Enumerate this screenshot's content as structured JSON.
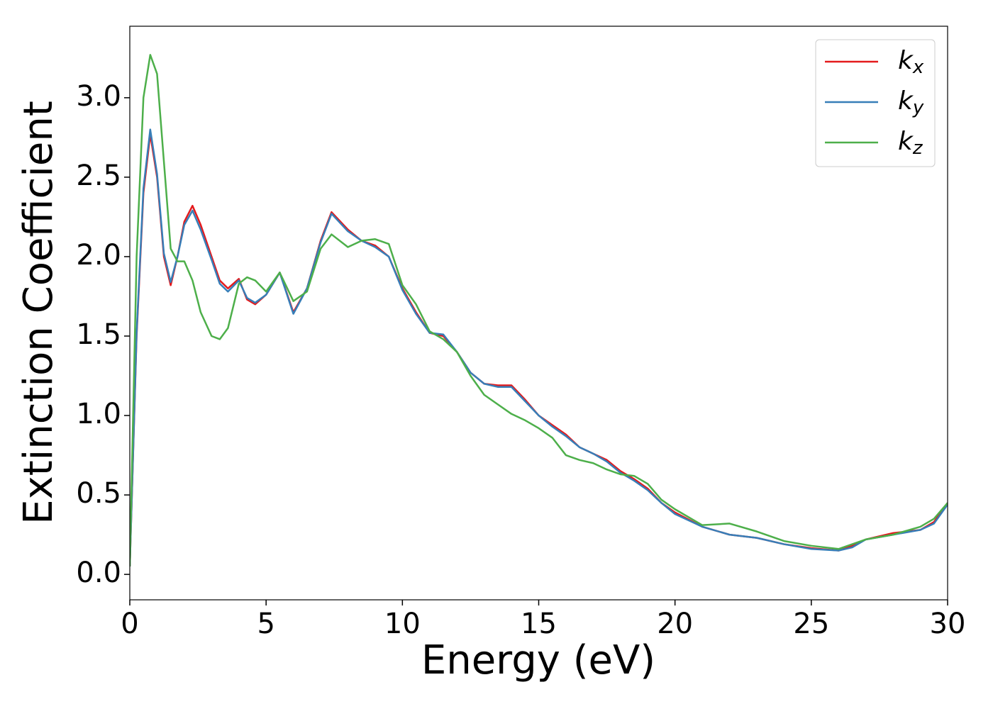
{
  "chart_data": {
    "type": "line",
    "xlabel": "Energy (eV)",
    "ylabel": "Extinction Coefficient",
    "xlim": [
      0,
      30
    ],
    "ylim": [
      -0.16,
      3.45
    ],
    "xticks": [
      0,
      5,
      10,
      15,
      20,
      25,
      30
    ],
    "yticks": [
      {
        "value": 0,
        "label": "0.0"
      },
      0.5,
      {
        "value": 1,
        "label": "1.0"
      },
      1.5,
      {
        "value": 2,
        "label": "2.0"
      },
      2.5,
      {
        "value": 3,
        "label": "3.0"
      }
    ],
    "legend": "upper right",
    "x": [
      0,
      0.25,
      0.5,
      0.75,
      1.0,
      1.25,
      1.5,
      1.75,
      2,
      2.3,
      2.6,
      3,
      3.3,
      3.6,
      4,
      4.3,
      4.6,
      5,
      5.5,
      6,
      6.5,
      7,
      7.4,
      8,
      8.5,
      9,
      9.5,
      10,
      10.5,
      11,
      11.5,
      12,
      12.5,
      13,
      13.5,
      14,
      14.5,
      15,
      15.5,
      16,
      16.5,
      17,
      17.5,
      18,
      18.5,
      19,
      19.5,
      20,
      21,
      22,
      23,
      24,
      25,
      26,
      26.5,
      27,
      28,
      29,
      29.5,
      30
    ],
    "series": [
      {
        "name": "kx",
        "color": "#e41a1c",
        "values": [
          0.05,
          1.5,
          2.4,
          2.77,
          2.5,
          2.0,
          1.82,
          2.0,
          2.22,
          2.32,
          2.2,
          2.0,
          1.85,
          1.8,
          1.86,
          1.73,
          1.7,
          1.76,
          1.9,
          1.65,
          1.8,
          2.1,
          2.28,
          2.17,
          2.1,
          2.07,
          2.0,
          1.8,
          1.65,
          1.52,
          1.5,
          1.4,
          1.27,
          1.2,
          1.19,
          1.19,
          1.1,
          1.0,
          0.94,
          0.88,
          0.8,
          0.76,
          0.72,
          0.65,
          0.6,
          0.54,
          0.45,
          0.39,
          0.3,
          0.25,
          0.23,
          0.19,
          0.165,
          0.15,
          0.18,
          0.22,
          0.26,
          0.28,
          0.33,
          0.45
        ]
      },
      {
        "name": "ky",
        "color": "#377eb8",
        "values": [
          0.05,
          1.52,
          2.43,
          2.8,
          2.52,
          2.02,
          1.84,
          2.0,
          2.2,
          2.29,
          2.17,
          1.98,
          1.83,
          1.78,
          1.85,
          1.74,
          1.71,
          1.76,
          1.9,
          1.64,
          1.8,
          2.09,
          2.27,
          2.16,
          2.1,
          2.06,
          2.0,
          1.79,
          1.64,
          1.52,
          1.51,
          1.4,
          1.27,
          1.2,
          1.18,
          1.18,
          1.09,
          1.0,
          0.93,
          0.87,
          0.8,
          0.76,
          0.71,
          0.64,
          0.59,
          0.53,
          0.45,
          0.38,
          0.3,
          0.25,
          0.23,
          0.19,
          0.16,
          0.15,
          0.17,
          0.22,
          0.25,
          0.28,
          0.32,
          0.44
        ]
      },
      {
        "name": "kz",
        "color": "#4daf4a",
        "values": [
          0.05,
          2.0,
          3.0,
          3.27,
          3.15,
          2.6,
          2.05,
          1.97,
          1.97,
          1.85,
          1.65,
          1.5,
          1.48,
          1.55,
          1.83,
          1.87,
          1.85,
          1.78,
          1.9,
          1.72,
          1.78,
          2.05,
          2.14,
          2.06,
          2.1,
          2.11,
          2.08,
          1.82,
          1.7,
          1.53,
          1.48,
          1.4,
          1.25,
          1.13,
          1.07,
          1.01,
          0.97,
          0.92,
          0.86,
          0.75,
          0.72,
          0.7,
          0.66,
          0.63,
          0.62,
          0.57,
          0.47,
          0.41,
          0.31,
          0.32,
          0.27,
          0.21,
          0.18,
          0.16,
          0.19,
          0.22,
          0.25,
          0.3,
          0.35,
          0.45
        ]
      }
    ]
  }
}
